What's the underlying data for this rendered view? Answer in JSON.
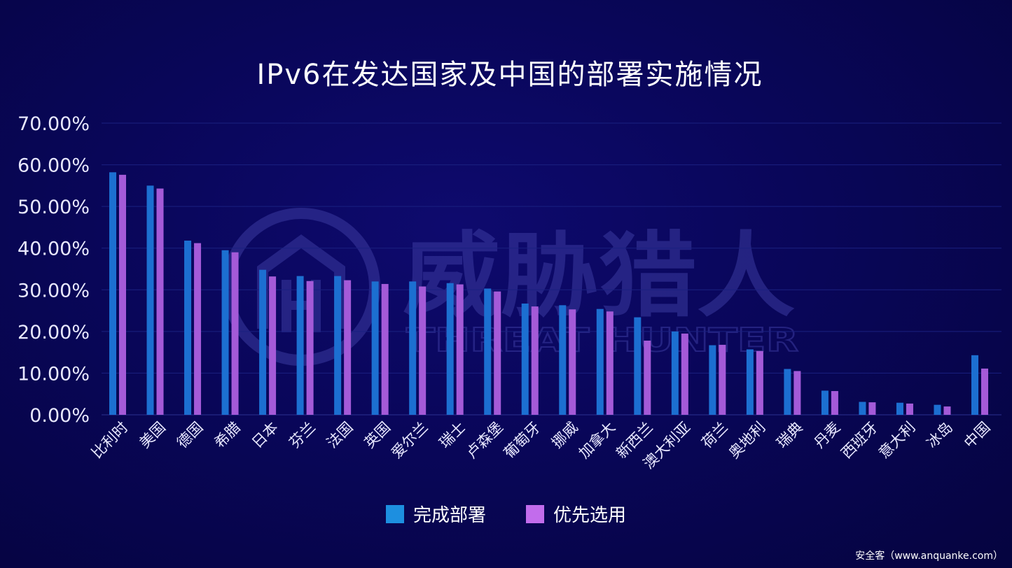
{
  "colors": {
    "series_complete": "#1c6fd1",
    "series_preferred": "#a45ad8",
    "legend_complete": "#1d8fe0",
    "legend_preferred": "#c26cec",
    "grid": "#1a2080",
    "watermark": "#3b3aa0"
  },
  "watermark": {
    "main": "威胁猎人",
    "sub": "THREAT HUNTER",
    "icon": "threat-hunter-logo-icon"
  },
  "footer": "安全客（www.anquanke.com）",
  "chart_data": {
    "type": "bar",
    "title": "IPv6在发达国家及中国的部署实施情况",
    "xlabel": "",
    "ylabel": "",
    "ylim": [
      0,
      70
    ],
    "yticks": [
      "0.00%",
      "10.00%",
      "20.00%",
      "30.00%",
      "40.00%",
      "50.00%",
      "60.00%",
      "70.00%"
    ],
    "grid": true,
    "legend_position": "bottom",
    "categories": [
      "比利时",
      "美国",
      "德国",
      "希腊",
      "日本",
      "芬兰",
      "法国",
      "英国",
      "爱尔兰",
      "瑞士",
      "卢森堡",
      "葡萄牙",
      "挪威",
      "加拿大",
      "新西兰",
      "澳大利亚",
      "荷兰",
      "奥地利",
      "瑞典",
      "丹麦",
      "西班牙",
      "意大利",
      "冰岛",
      "中国"
    ],
    "series": [
      {
        "name": "完成部署",
        "values": [
          58.2,
          55.0,
          41.8,
          39.5,
          34.8,
          33.3,
          33.3,
          32.0,
          32.0,
          31.6,
          30.3,
          26.7,
          26.3,
          25.4,
          23.4,
          20.0,
          16.7,
          15.7,
          11.0,
          5.8,
          3.1,
          2.9,
          2.4,
          14.3
        ]
      },
      {
        "name": "优先选用",
        "values": [
          57.6,
          54.3,
          41.2,
          39.0,
          33.2,
          32.1,
          32.3,
          31.4,
          30.8,
          31.3,
          29.6,
          26.0,
          25.3,
          24.8,
          17.8,
          19.5,
          16.8,
          15.3,
          10.5,
          5.7,
          3.0,
          2.7,
          2.0,
          11.1
        ]
      }
    ]
  }
}
